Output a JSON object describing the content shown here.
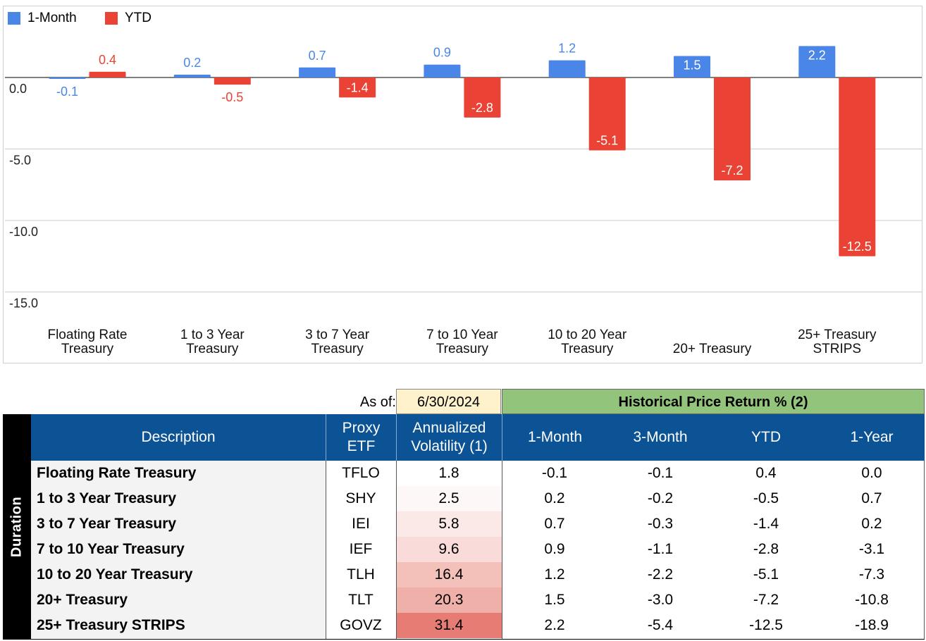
{
  "chart_data": {
    "type": "bar",
    "categories": [
      [
        "Floating Rate",
        "Treasury"
      ],
      [
        "1 to 3 Year",
        "Treasury"
      ],
      [
        "3 to 7 Year",
        "Treasury"
      ],
      [
        "7 to 10 Year",
        "Treasury"
      ],
      [
        "10 to 20 Year",
        "Treasury"
      ],
      [
        "20+ Treasury"
      ],
      [
        "25+ Treasury",
        "STRIPS"
      ]
    ],
    "series": [
      {
        "name": "1-Month",
        "color": "#4a86e8",
        "values": [
          -0.1,
          0.2,
          0.7,
          0.9,
          1.2,
          1.5,
          2.2
        ]
      },
      {
        "name": "YTD",
        "color": "#ea4335",
        "values": [
          0.4,
          -0.5,
          -1.4,
          -2.8,
          -5.1,
          -7.2,
          -12.5
        ]
      }
    ],
    "yticks": [
      "0.0",
      "-5.0",
      "-10.0",
      "-15.0"
    ],
    "ylim": [
      -15,
      4.8
    ],
    "grid": true,
    "legend_position": "top-left"
  },
  "table": {
    "as_of_label": "As of:",
    "as_of_date": "6/30/2024",
    "group_header": "Historical Price Return % (2)",
    "side_label": "Duration",
    "columns": [
      "Description",
      "Proxy ETF",
      "Annualized Volatility (1)",
      "1-Month",
      "3-Month",
      "YTD",
      "1-Year"
    ],
    "rows": [
      {
        "description": "Floating Rate Treasury",
        "etf": "TFLO",
        "volatility": "1.8",
        "m1": "-0.1",
        "m3": "-0.1",
        "ytd": "0.4",
        "y1": "0.0",
        "heat": "#ffffff"
      },
      {
        "description": "1 to 3 Year Treasury",
        "etf": "SHY",
        "volatility": "2.5",
        "m1": "0.2",
        "m3": "-0.2",
        "ytd": "-0.5",
        "y1": "0.7",
        "heat": "#fdf8f7"
      },
      {
        "description": "3 to 7 Year Treasury",
        "etf": "IEI",
        "volatility": "5.8",
        "m1": "0.7",
        "m3": "-0.3",
        "ytd": "-1.4",
        "y1": "0.2",
        "heat": "#fbe9e7"
      },
      {
        "description": "7 to 10 Year Treasury",
        "etf": "IEF",
        "volatility": "9.6",
        "m1": "0.9",
        "m3": "-1.1",
        "ytd": "-2.8",
        "y1": "-3.1",
        "heat": "#f9dcd9"
      },
      {
        "description": "10 to 20 Year Treasury",
        "etf": "TLH",
        "volatility": "16.4",
        "m1": "1.2",
        "m3": "-2.2",
        "ytd": "-5.1",
        "y1": "-7.3",
        "heat": "#f3c0ba"
      },
      {
        "description": "20+ Treasury",
        "etf": "TLT",
        "volatility": "20.3",
        "m1": "1.5",
        "m3": "-3.0",
        "ytd": "-7.2",
        "y1": "-10.8",
        "heat": "#efb0a9"
      },
      {
        "description": "25+ Treasury STRIPS",
        "etf": "GOVZ",
        "volatility": "31.4",
        "m1": "2.2",
        "m3": "-5.4",
        "ytd": "-12.5",
        "y1": "-18.9",
        "heat": "#e67c73"
      }
    ]
  }
}
